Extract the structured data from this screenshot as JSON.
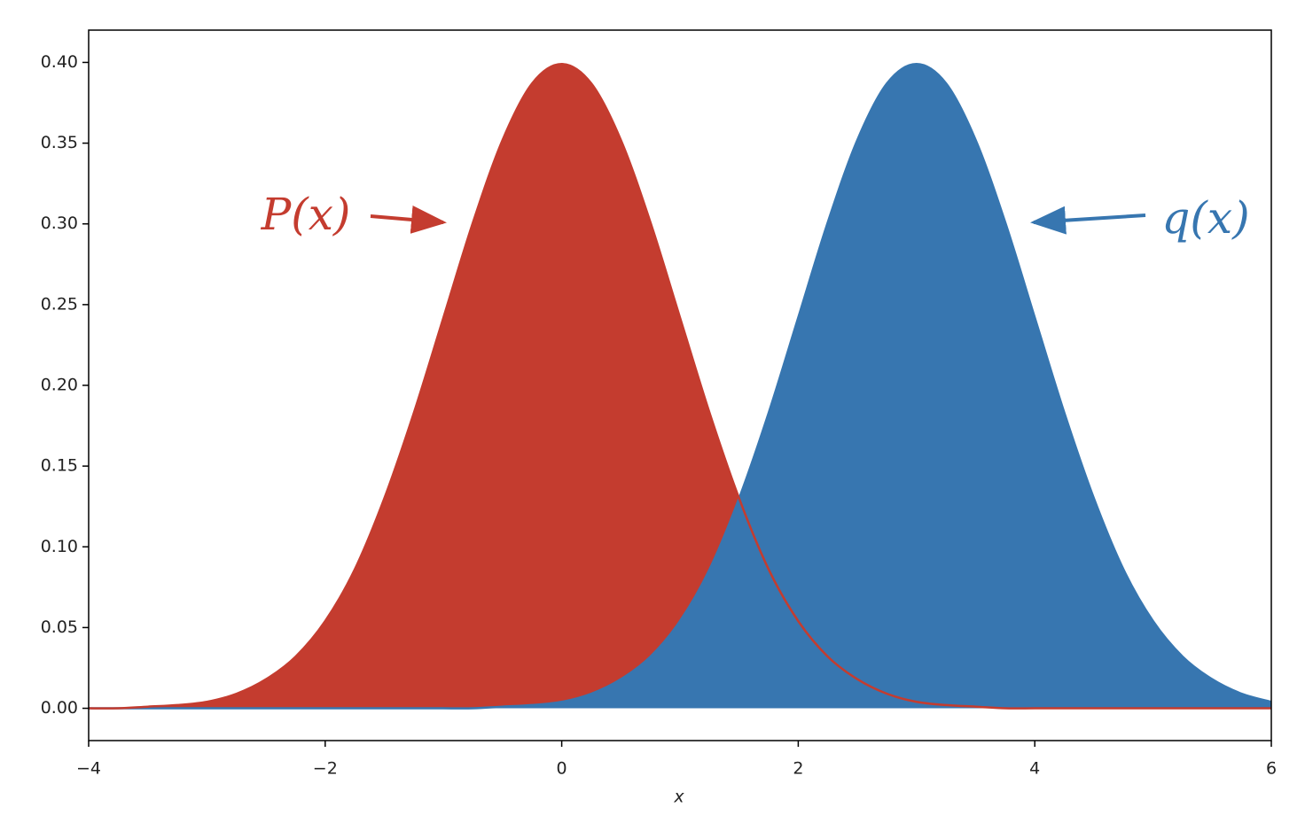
{
  "chart_data": {
    "type": "area",
    "xlabel": "x",
    "x": [
      -4,
      -3.75,
      -3.5,
      -3.25,
      -3,
      -2.75,
      -2.5,
      -2.25,
      -2,
      -1.75,
      -1.5,
      -1.25,
      -1,
      -0.75,
      -0.5,
      -0.25,
      0,
      0.25,
      0.5,
      0.75,
      1,
      1.25,
      1.5,
      1.75,
      2,
      2.25,
      2.5,
      2.75,
      3,
      3.25,
      3.5,
      3.75,
      4,
      4.25,
      4.5,
      4.75,
      5,
      5.25,
      5.5,
      5.75,
      6
    ],
    "series": [
      {
        "name": "P(x)",
        "color": "#c43c2f",
        "values": [
          0,
          0,
          0.001,
          0.002,
          0.004,
          0.009,
          0.018,
          0.032,
          0.054,
          0.086,
          0.13,
          0.183,
          0.242,
          0.301,
          0.352,
          0.387,
          0.399,
          0.387,
          0.352,
          0.301,
          0.242,
          0.183,
          0.13,
          0.086,
          0.054,
          0.032,
          0.018,
          0.009,
          0.004,
          0.002,
          0.001,
          0,
          0,
          0,
          0,
          0,
          0,
          0,
          0,
          0,
          0
        ]
      },
      {
        "name": "q(x)",
        "color": "#3776b0",
        "values": [
          0,
          0,
          0,
          0,
          0,
          0,
          0,
          0,
          0,
          0,
          0,
          0,
          0,
          0,
          0.001,
          0.002,
          0.004,
          0.009,
          0.018,
          0.032,
          0.054,
          0.086,
          0.13,
          0.183,
          0.242,
          0.301,
          0.352,
          0.387,
          0.399,
          0.387,
          0.352,
          0.301,
          0.242,
          0.183,
          0.13,
          0.086,
          0.054,
          0.032,
          0.018,
          0.009,
          0.004
        ]
      }
    ],
    "xlim": [
      -4,
      6
    ],
    "xticks": [
      {
        "value": -4,
        "label": "−4"
      },
      {
        "value": -2,
        "label": "−2"
      },
      0,
      2,
      4,
      6
    ],
    "ylim": [
      -0.02,
      0.42
    ],
    "yticks": [
      {
        "value": 0,
        "label": "0.00"
      },
      0.05,
      {
        "value": 0.1,
        "label": "0.10"
      },
      0.15,
      {
        "value": 0.2,
        "label": "0.20"
      },
      0.25,
      {
        "value": 0.3,
        "label": "0.30"
      },
      0.35,
      {
        "value": 0.4,
        "label": "0.40"
      }
    ]
  }
}
